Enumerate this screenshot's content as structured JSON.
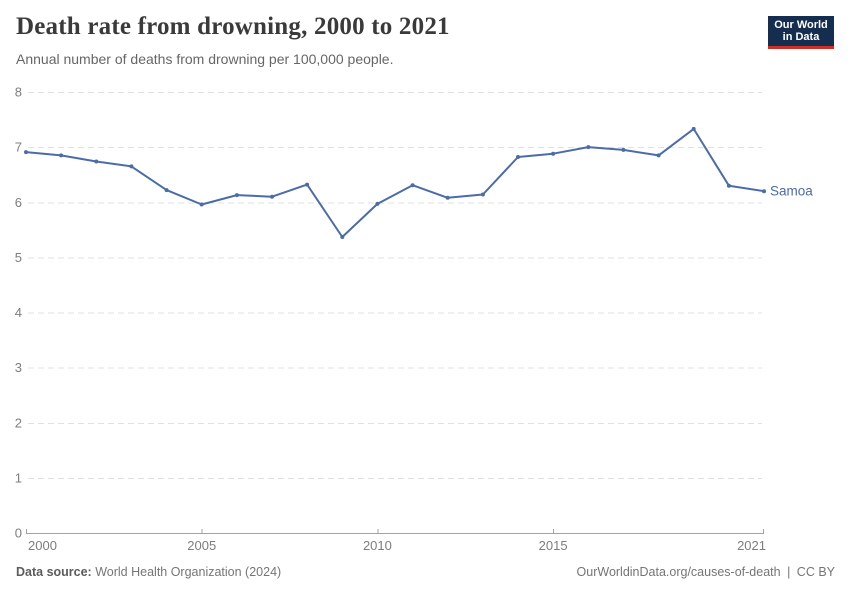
{
  "header": {
    "title": "Death rate from drowning, 2000 to 2021",
    "subtitle": "Annual number of deaths from drowning per 100,000 people.",
    "logo": {
      "line1": "Our World",
      "line2": "in Data"
    }
  },
  "chart_data": {
    "type": "line",
    "title": "Death rate from drowning, 2000 to 2021",
    "x": [
      2000,
      2001,
      2002,
      2003,
      2004,
      2005,
      2006,
      2007,
      2008,
      2009,
      2010,
      2011,
      2012,
      2013,
      2014,
      2015,
      2016,
      2017,
      2018,
      2019,
      2020,
      2021
    ],
    "series": [
      {
        "name": "Samoa",
        "values": [
          6.91,
          6.85,
          6.74,
          6.65,
          6.22,
          5.96,
          6.13,
          6.1,
          6.32,
          5.37,
          5.97,
          6.31,
          6.08,
          6.14,
          6.82,
          6.88,
          7.0,
          6.95,
          6.85,
          7.33,
          6.3,
          6.2
        ]
      }
    ],
    "xlabel": "",
    "ylabel": "",
    "ylim": [
      0,
      8
    ],
    "yticks": [
      0,
      1,
      2,
      3,
      4,
      5,
      6,
      7,
      8
    ],
    "xticks": [
      2000,
      2005,
      2010,
      2015,
      2021
    ],
    "grid": true,
    "grid_style": "dashed",
    "legend_position": "end-of-line"
  },
  "footer": {
    "source_label": "Data source:",
    "source_value": "World Health Organization (2024)",
    "url": "OurWorldinData.org/causes-of-death",
    "separator": "|",
    "license": "CC BY"
  },
  "colors": {
    "line": "#4b6ca8",
    "entity_label": "#4b6ca8",
    "grid": "#e0e0e0",
    "axis": "#a3a3a3",
    "tick_text": "#7d7d7d",
    "title_text": "#3a3a3a",
    "subtitle_text": "#666666",
    "footer_text": "#757575",
    "logo_bg": "#152e4f",
    "logo_stripe": "#cf2e27"
  }
}
